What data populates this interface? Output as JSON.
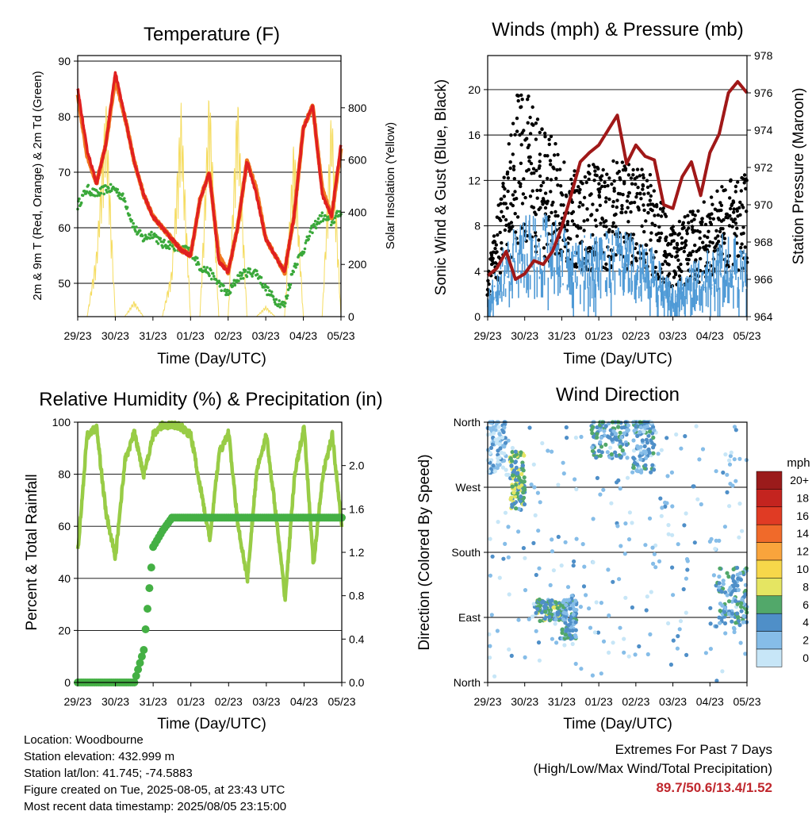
{
  "x_ticks": [
    "29/23",
    "30/23",
    "31/23",
    "01/23",
    "02/23",
    "03/23",
    "04/23",
    "05/23"
  ],
  "info": {
    "location": "Location: Woodbourne",
    "elevation": "Station elevation: 432.999 m",
    "latlon": "Station lat/lon: 41.745; -74.5883",
    "created": "Figure created on Tue, 2025-08-05, at 23:43 UTC",
    "latest": "Most recent data timestamp: 2025/08/05 23:15:00"
  },
  "extremes": {
    "title": "Extremes For Past 7 Days",
    "subtitle": "(High/Low/Max Wind/Total Precipitation)",
    "values": "89.7/50.6/13.4/1.52"
  },
  "colors": {
    "temp2m": "#e02020",
    "temp9m": "#f07820",
    "dewpoint": "#3aa83a",
    "solar": "#f5dc60",
    "wind": "#4f9ad6",
    "gust": "#000000",
    "pressure": "#a01818",
    "rh": "#98cc46",
    "precip": "#44b044"
  },
  "chart_data": [
    {
      "type": "line",
      "title": "Temperature (F)",
      "xlabel": "Time (Day/UTC)",
      "ylabel": "2m & 9m T (Red, Orange) & 2m Td (Green)",
      "ylabel_right": "Solar Insolation (Yellow)",
      "ylim": [
        44,
        91
      ],
      "yticks": [
        50,
        60,
        70,
        80,
        90
      ],
      "ylim_right": [
        0,
        1000
      ],
      "yticks_right": [
        0,
        200,
        400,
        600,
        800
      ],
      "x": [
        0,
        0.25,
        0.5,
        0.75,
        1,
        1.25,
        1.5,
        1.75,
        2,
        2.25,
        2.5,
        2.75,
        3,
        3.25,
        3.5,
        3.75,
        4,
        4.25,
        4.5,
        4.75,
        5,
        5.25,
        5.5,
        5.75,
        6,
        6.25,
        6.5,
        6.75,
        7
      ],
      "series": [
        {
          "name": "2m T",
          "values": [
            85,
            74,
            68,
            75,
            88,
            80,
            72,
            66,
            62,
            60,
            58,
            56,
            55,
            65,
            70,
            54,
            52,
            60,
            72,
            66,
            58,
            55,
            52,
            62,
            78,
            82,
            66,
            62,
            75
          ]
        },
        {
          "name": "9m T",
          "values": [
            84,
            73,
            68,
            75,
            87,
            80,
            72,
            66,
            62,
            60,
            58,
            56,
            55,
            65,
            70,
            55,
            52,
            60,
            72,
            67,
            58,
            55,
            52,
            62,
            78,
            82,
            67,
            62,
            74
          ]
        },
        {
          "name": "2m Td",
          "values": [
            64,
            67,
            66,
            67,
            67,
            65,
            60,
            58,
            59,
            57,
            57,
            56,
            56,
            53,
            52,
            50,
            48,
            51,
            52,
            52,
            49,
            47,
            46,
            53,
            56,
            60,
            62,
            61,
            63
          ]
        },
        {
          "name": "Solar",
          "values": [
            0,
            0,
            250,
            840,
            0,
            0,
            60,
            0,
            0,
            0,
            180,
            820,
            0,
            0,
            900,
            0,
            0,
            870,
            0,
            0,
            40,
            0,
            0,
            700,
            0,
            0,
            0,
            820,
            0
          ]
        }
      ]
    },
    {
      "type": "scatter",
      "title": "Winds (mph) & Pressure (mb)",
      "xlabel": "Time (Day/UTC)",
      "ylabel": "Sonic Wind & Gust (Blue, Black)",
      "ylabel_right": "Station Pressure (Maroon)",
      "ylim": [
        0,
        23
      ],
      "yticks": [
        0,
        4,
        8,
        12,
        16,
        20
      ],
      "ylim_right": [
        964,
        978
      ],
      "yticks_right": [
        964,
        966,
        968,
        970,
        972,
        974,
        976,
        978
      ],
      "pressure_x": [
        0,
        0.25,
        0.5,
        0.75,
        1,
        1.25,
        1.5,
        1.75,
        2,
        2.25,
        2.5,
        2.75,
        3,
        3.25,
        3.5,
        3.75,
        4,
        4.25,
        4.5,
        4.75,
        5,
        5.25,
        5.5,
        5.75,
        6,
        6.25,
        6.5,
        6.75,
        7
      ],
      "pressure": [
        966.2,
        966.6,
        967.5,
        966,
        966.3,
        967,
        966.8,
        967.5,
        968.8,
        970.5,
        972.3,
        972.8,
        973.2,
        974,
        974.8,
        972.2,
        973.2,
        972.6,
        972.4,
        970,
        969.8,
        971.5,
        972.3,
        970.5,
        972.8,
        973.8,
        976,
        976.6,
        976
      ],
      "wind_peaks_x": [
        0,
        0.5,
        0.9,
        1.5,
        2.3,
        3.5,
        4.3,
        5,
        6.5,
        7
      ],
      "wind_peaks": [
        2,
        7,
        9,
        10,
        7,
        8,
        7,
        3,
        8,
        6
      ],
      "gust_peaks": [
        4,
        14,
        21,
        17,
        13,
        14,
        13,
        8,
        12,
        13
      ]
    },
    {
      "type": "line",
      "title": "Relative Humidity (%) & Precipitation (in)",
      "xlabel": "Time (Day/UTC)",
      "ylabel": "Percent & Total Rainfall",
      "ylim": [
        0,
        100
      ],
      "yticks": [
        0,
        20,
        40,
        60,
        80,
        100
      ],
      "ylim_right": [
        0,
        2.4
      ],
      "yticks_right": [
        0.0,
        0.4,
        0.8,
        1.2,
        1.6,
        2.0
      ],
      "x": [
        0,
        0.25,
        0.5,
        0.75,
        1,
        1.25,
        1.5,
        1.75,
        2,
        2.25,
        2.5,
        2.75,
        3,
        3.25,
        3.5,
        3.75,
        4,
        4.25,
        4.5,
        4.75,
        5,
        5.25,
        5.5,
        5.75,
        6,
        6.25,
        6.5,
        6.75,
        7
      ],
      "series": [
        {
          "name": "RH",
          "values": [
            50,
            95,
            98,
            65,
            48,
            85,
            96,
            80,
            95,
            99,
            99,
            98,
            95,
            75,
            55,
            88,
            96,
            60,
            40,
            82,
            95,
            65,
            32,
            80,
            98,
            45,
            80,
            95,
            60
          ]
        },
        {
          "name": "Precip",
          "values": [
            0,
            0,
            0,
            0,
            0,
            0,
            0,
            0.3,
            1.25,
            1.4,
            1.52,
            1.52,
            1.52,
            1.52,
            1.52,
            1.52,
            1.52,
            1.52,
            1.52,
            1.52,
            1.52,
            1.52,
            1.52,
            1.52,
            1.52,
            1.52,
            1.52,
            1.52,
            1.52
          ]
        }
      ]
    },
    {
      "type": "scatter",
      "title": "Wind Direction",
      "xlabel": "Time (Day/UTC)",
      "ylabel": "Direction (Colored By Speed)",
      "ycategories": [
        "North",
        "East",
        "South",
        "West",
        "North"
      ],
      "colorbar_title": "mph",
      "colorbar_labels": [
        "20+",
        "18",
        "16",
        "14",
        "12",
        "10",
        "8",
        "6",
        "4",
        "2",
        "0"
      ],
      "colorbar_colors": [
        "#9b1b1b",
        "#c4241f",
        "#e03b24",
        "#f06a2a",
        "#f9a43c",
        "#f7d74a",
        "#e5e562",
        "#52a86a",
        "#4f8fc8",
        "#86bde8",
        "#c7e6f7"
      ],
      "clusters": [
        {
          "x": 0.2,
          "dir": 330,
          "spread_x": 0.3,
          "spread_dir": 40,
          "speed": 2
        },
        {
          "x": 0.8,
          "dir": 280,
          "spread_x": 0.2,
          "spread_dir": 40,
          "speed": 6
        },
        {
          "x": 1.7,
          "dir": 100,
          "spread_x": 0.4,
          "spread_dir": 15,
          "speed": 5
        },
        {
          "x": 2.2,
          "dir": 90,
          "spread_x": 0.2,
          "spread_dir": 30,
          "speed": 4
        },
        {
          "x": 3.3,
          "dir": 340,
          "spread_x": 0.5,
          "spread_dir": 30,
          "speed": 4
        },
        {
          "x": 4.2,
          "dir": 330,
          "spread_x": 0.3,
          "spread_dir": 40,
          "speed": 3
        },
        {
          "x": 6.6,
          "dir": 120,
          "spread_x": 0.4,
          "spread_dir": 40,
          "speed": 4
        }
      ]
    }
  ]
}
